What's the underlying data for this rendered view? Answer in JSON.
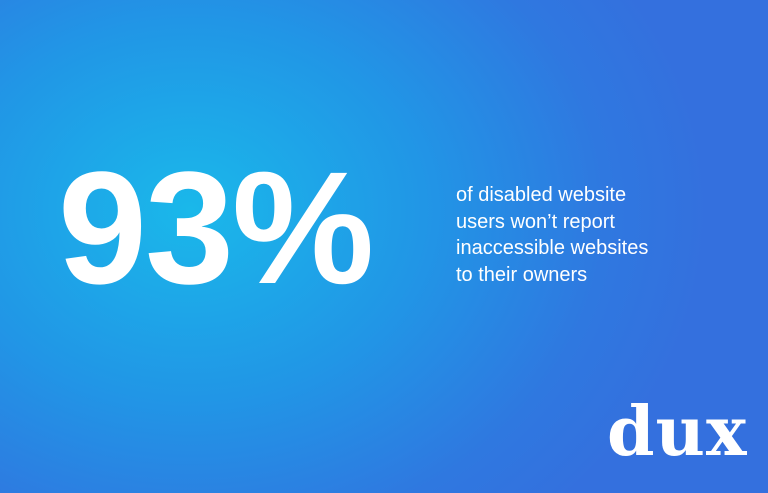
{
  "stat": "93%",
  "description": [
    "of disabled website",
    "users won’t report",
    "inaccessible websites",
    "to their owners"
  ],
  "logo": "dux"
}
